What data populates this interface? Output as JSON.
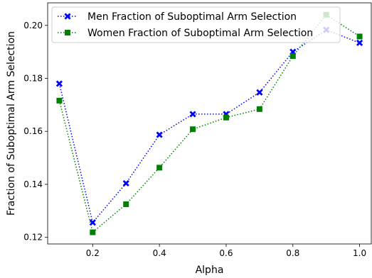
{
  "chart_data": {
    "type": "line",
    "xlabel": "Alpha",
    "ylabel": "Fraction of Suboptimal Arm Selection",
    "xlim": [
      0.065,
      1.035
    ],
    "ylim": [
      0.1175,
      0.2085
    ],
    "x_ticks": [
      0.2,
      0.4,
      0.6,
      0.8,
      1.0
    ],
    "x_tick_labels": [
      "0.2",
      "0.4",
      "0.6",
      "0.8",
      "1.0"
    ],
    "y_ticks": [
      0.12,
      0.14,
      0.16,
      0.18,
      0.2
    ],
    "y_tick_labels": [
      "0.12",
      "0.14",
      "0.16",
      "0.18",
      "0.20"
    ],
    "grid": false,
    "legend_position": "top",
    "x": [
      0.1,
      0.2,
      0.3,
      0.4,
      0.5,
      0.6,
      0.7,
      0.8,
      0.9,
      1.0
    ],
    "series": [
      {
        "name": "Men Fraction of Suboptimal Arm Selection",
        "color": "#0000ff",
        "marker": "x",
        "line_style": "dotted",
        "values": [
          0.178,
          0.1256,
          0.1404,
          0.1587,
          0.1665,
          0.1665,
          0.1747,
          0.19,
          0.1983,
          0.1934
        ]
      },
      {
        "name": "Women Fraction of Suboptimal Arm Selection",
        "color": "#008000",
        "marker": "square",
        "line_style": "dotted",
        "values": [
          0.1716,
          0.1219,
          0.1325,
          0.1463,
          0.1608,
          0.1652,
          0.1684,
          0.1884,
          0.204,
          0.1958
        ]
      }
    ]
  }
}
